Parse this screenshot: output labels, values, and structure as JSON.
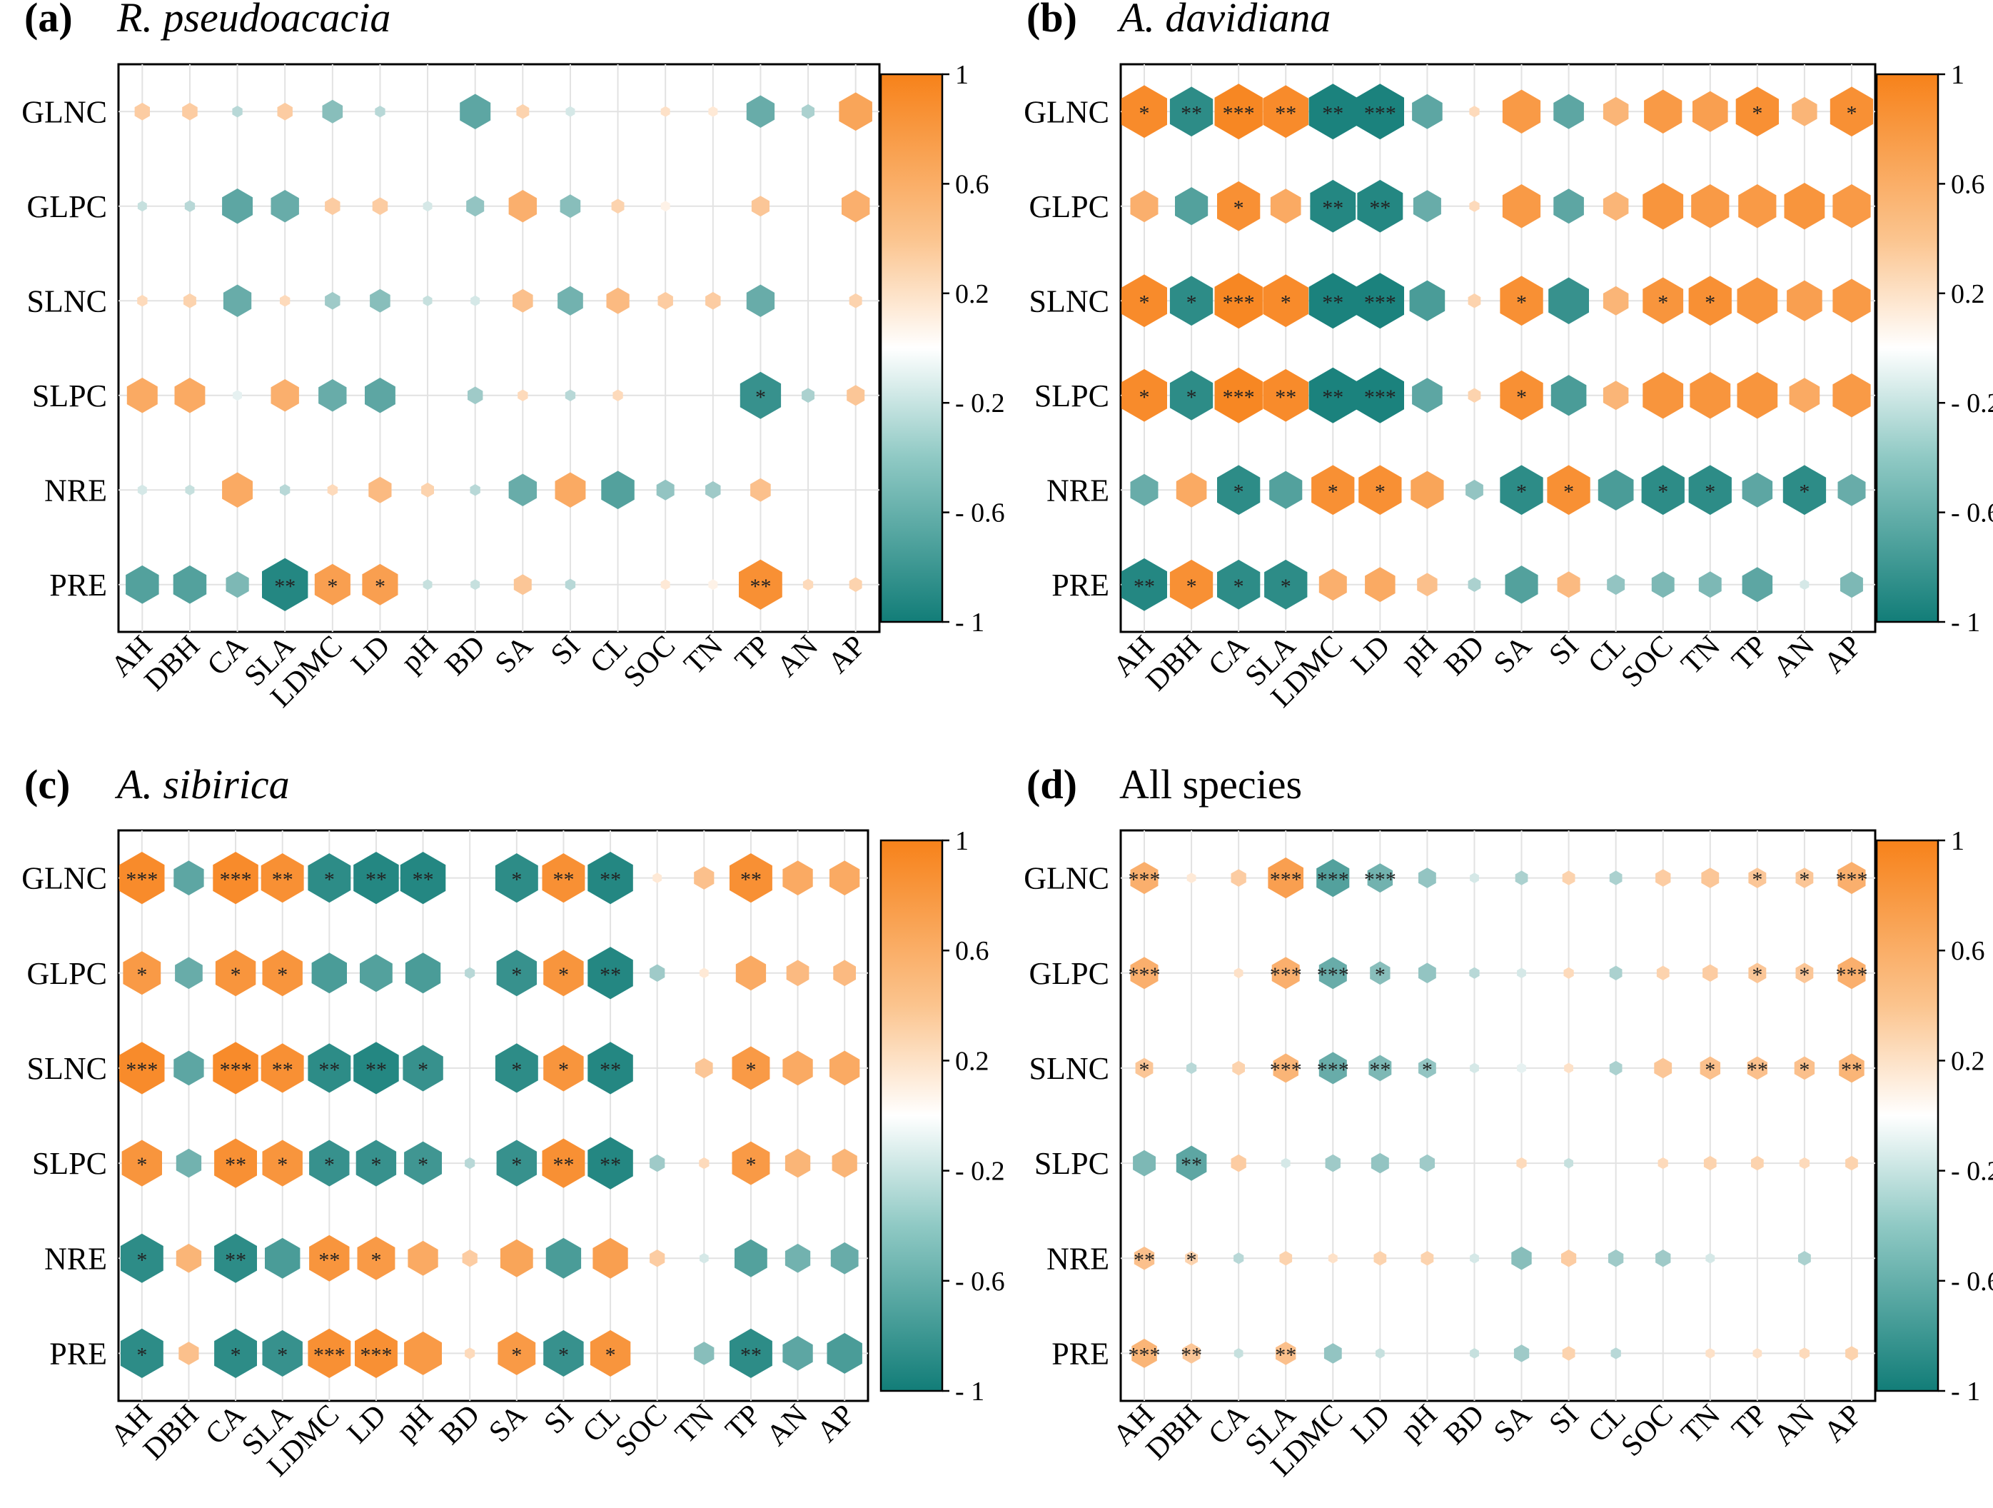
{
  "figure": {
    "row_labels": [
      "GLNC",
      "GLPC",
      "SLNC",
      "SLPC",
      "NRE",
      "PRE"
    ],
    "col_labels": [
      "AH",
      "DBH",
      "CA",
      "SLA",
      "LDMC",
      "LD",
      "pH",
      "BD",
      "SA",
      "SI",
      "CL",
      "SOC",
      "TN",
      "TP",
      "AN",
      "AP"
    ],
    "colorbar": {
      "ticks": [
        1,
        0.6,
        0.2,
        -0.2,
        -0.6,
        -1
      ],
      "tick_labels": [
        "1",
        "0.6",
        "0.2",
        "- 0.2",
        "- 0.6",
        "- 1"
      ],
      "colors": {
        "pos": "#f7821a",
        "neg": "#127d78",
        "mid": "#ffffff"
      }
    }
  },
  "chart_data": [
    {
      "type": "heatmap",
      "panel_label": "(a)",
      "title": "R. pseudoacacia",
      "title_italic": true,
      "value_range": [
        -1,
        1
      ],
      "values": [
        [
          0.3,
          0.3,
          -0.2,
          0.3,
          -0.4,
          -0.2,
          0,
          -0.6,
          0.25,
          -0.1,
          0,
          0.15,
          0.1,
          -0.55,
          -0.25,
          0.65
        ],
        [
          -0.15,
          -0.2,
          -0.6,
          -0.55,
          0.3,
          0.3,
          -0.1,
          -0.35,
          0.55,
          -0.4,
          0.25,
          0.05,
          0,
          0.35,
          0,
          0.55
        ],
        [
          0.2,
          0.25,
          -0.55,
          0.2,
          -0.3,
          -0.4,
          -0.15,
          -0.1,
          0.4,
          -0.5,
          0.45,
          0.3,
          0.3,
          -0.55,
          0,
          0.25
        ],
        [
          0.6,
          0.6,
          -0.05,
          0.55,
          -0.55,
          -0.6,
          0,
          -0.3,
          0.2,
          -0.2,
          0.2,
          0,
          0,
          -0.8,
          -0.25,
          0.35
        ],
        [
          -0.1,
          -0.15,
          0.6,
          -0.2,
          0.2,
          0.45,
          0.25,
          -0.2,
          -0.55,
          0.6,
          -0.65,
          -0.35,
          -0.3,
          0.4,
          0,
          0
        ],
        [
          -0.65,
          -0.65,
          -0.45,
          -0.9,
          0.7,
          0.7,
          -0.15,
          -0.15,
          0.35,
          -0.2,
          0,
          0.1,
          0.05,
          0.85,
          0.2,
          0.25
        ]
      ],
      "significance": [
        [
          "",
          "",
          "",
          "",
          "",
          "",
          "",
          "",
          "",
          "",
          "",
          "",
          "",
          "",
          "",
          ""
        ],
        [
          "",
          "",
          "",
          "",
          "",
          "",
          "",
          "",
          "",
          "",
          "",
          "",
          "",
          "",
          "",
          ""
        ],
        [
          "",
          "",
          "",
          "",
          "",
          "",
          "",
          "",
          "",
          "",
          "",
          "",
          "",
          "",
          "",
          ""
        ],
        [
          "",
          "",
          "",
          "",
          "",
          "",
          "",
          "",
          "",
          "",
          "",
          "",
          "",
          "*",
          "",
          ""
        ],
        [
          "",
          "",
          "",
          "",
          "",
          "",
          "",
          "",
          "",
          "",
          "",
          "",
          "",
          "",
          "",
          ""
        ],
        [
          "",
          "",
          "",
          "**",
          "*",
          "*",
          "",
          "",
          "",
          "",
          "",
          "",
          "",
          "**",
          "",
          ""
        ]
      ]
    },
    {
      "type": "heatmap",
      "panel_label": "(b)",
      "title": "A. davidiana",
      "title_italic": true,
      "value_range": [
        -1,
        1
      ],
      "values": [
        [
          0.9,
          -0.85,
          0.95,
          0.9,
          -0.95,
          -0.95,
          -0.6,
          0.2,
          0.75,
          -0.6,
          0.5,
          0.75,
          0.7,
          0.85,
          0.5,
          0.85
        ],
        [
          0.55,
          -0.65,
          0.85,
          0.6,
          -0.9,
          -0.9,
          -0.55,
          0.2,
          0.75,
          -0.6,
          0.5,
          0.8,
          0.75,
          0.75,
          0.8,
          0.75
        ],
        [
          0.9,
          -0.85,
          0.95,
          0.9,
          -0.95,
          -0.95,
          -0.7,
          0.25,
          0.85,
          -0.8,
          0.5,
          0.8,
          0.85,
          0.8,
          0.7,
          0.75
        ],
        [
          0.9,
          -0.85,
          0.95,
          0.9,
          -0.95,
          -0.95,
          -0.6,
          0.25,
          0.85,
          -0.7,
          0.5,
          0.8,
          0.8,
          0.8,
          0.6,
          0.75
        ],
        [
          -0.55,
          0.6,
          -0.85,
          -0.65,
          0.85,
          0.85,
          0.65,
          -0.35,
          -0.85,
          0.85,
          -0.7,
          -0.85,
          -0.85,
          -0.6,
          -0.85,
          -0.55
        ],
        [
          -0.9,
          0.85,
          -0.85,
          -0.85,
          0.55,
          0.6,
          0.4,
          -0.25,
          -0.65,
          0.45,
          -0.35,
          -0.45,
          -0.45,
          -0.6,
          -0.1,
          -0.45
        ]
      ],
      "significance": [
        [
          "*",
          "**",
          "***",
          "**",
          "**",
          "***",
          "",
          "",
          "",
          "",
          "",
          "",
          "",
          "*",
          "",
          "*"
        ],
        [
          "",
          "",
          "*",
          "",
          "**",
          "**",
          "",
          "",
          "",
          "",
          "",
          "",
          "",
          "",
          "",
          ""
        ],
        [
          "*",
          "*",
          "***",
          "*",
          "**",
          "***",
          "",
          "",
          "*",
          "",
          "",
          "*",
          "*",
          "",
          "",
          ""
        ],
        [
          "*",
          "*",
          "***",
          "**",
          "**",
          "***",
          "",
          "",
          "*",
          "",
          "",
          "",
          "",
          "",
          "",
          ""
        ],
        [
          "",
          "",
          "*",
          "",
          "*",
          "*",
          "",
          "",
          "*",
          "*",
          "",
          "*",
          "*",
          "",
          "*",
          ""
        ],
        [
          "**",
          "*",
          "*",
          "*",
          "",
          "",
          "",
          "",
          "",
          "",
          "",
          "",
          "",
          "",
          "",
          ""
        ]
      ]
    },
    {
      "type": "heatmap",
      "panel_label": "(c)",
      "title": "A. sibirica",
      "title_italic": true,
      "value_range": [
        -1,
        1
      ],
      "values": [
        [
          0.9,
          -0.6,
          0.9,
          0.85,
          -0.85,
          -0.9,
          -0.9,
          0,
          -0.85,
          0.85,
          -0.9,
          0.1,
          0.4,
          0.85,
          0.6,
          0.6
        ],
        [
          0.75,
          -0.55,
          0.8,
          0.8,
          -0.7,
          -0.65,
          -0.7,
          -0.2,
          -0.8,
          0.8,
          -0.9,
          -0.3,
          0.1,
          0.6,
          0.45,
          0.45
        ],
        [
          0.9,
          -0.6,
          0.9,
          0.85,
          -0.85,
          -0.9,
          -0.8,
          0,
          -0.85,
          0.8,
          -0.9,
          0,
          0.35,
          0.75,
          0.6,
          0.6
        ],
        [
          0.8,
          -0.5,
          0.85,
          0.8,
          -0.8,
          -0.8,
          -0.75,
          -0.2,
          -0.8,
          0.85,
          -0.9,
          -0.3,
          0.2,
          0.75,
          0.5,
          0.5
        ],
        [
          -0.85,
          0.5,
          -0.85,
          -0.7,
          0.8,
          0.75,
          0.6,
          0.3,
          0.65,
          -0.7,
          0.7,
          0.3,
          -0.1,
          -0.65,
          -0.5,
          -0.55
        ],
        [
          -0.85,
          0.4,
          -0.85,
          -0.8,
          0.85,
          0.85,
          0.75,
          0.2,
          0.75,
          -0.8,
          0.8,
          0,
          -0.4,
          -0.85,
          -0.6,
          -0.7
        ]
      ],
      "significance": [
        [
          "***",
          "",
          "***",
          "**",
          "*",
          "**",
          "**",
          "",
          "*",
          "**",
          "**",
          "",
          "",
          "**",
          "",
          ""
        ],
        [
          "*",
          "",
          "*",
          "*",
          "",
          "",
          "",
          "",
          "*",
          "*",
          "**",
          "",
          "",
          "",
          "",
          ""
        ],
        [
          "***",
          "",
          "***",
          "**",
          "**",
          "**",
          "*",
          "",
          "*",
          "*",
          "**",
          "",
          "",
          "*",
          "",
          ""
        ],
        [
          "*",
          "",
          "**",
          "*",
          "*",
          "*",
          "*",
          "",
          "*",
          "**",
          "**",
          "",
          "",
          "*",
          "",
          ""
        ],
        [
          "*",
          "",
          "**",
          "",
          "**",
          "*",
          "",
          "",
          "",
          "",
          "",
          "",
          "",
          "",
          "",
          ""
        ],
        [
          "*",
          "",
          "*",
          "*",
          "***",
          "***",
          "",
          "",
          "*",
          "*",
          "*",
          "",
          "",
          "**",
          "",
          ""
        ]
      ]
    },
    {
      "type": "heatmap",
      "panel_label": "(d)",
      "title": "All species",
      "title_italic": false,
      "value_range": [
        -1,
        1
      ],
      "values": [
        [
          0.55,
          0.1,
          0.3,
          0.7,
          -0.65,
          -0.5,
          -0.35,
          -0.1,
          -0.25,
          0.25,
          -0.25,
          0.3,
          0.35,
          0.35,
          0.35,
          0.55
        ],
        [
          0.55,
          0,
          0.15,
          0.55,
          -0.55,
          -0.4,
          -0.35,
          -0.2,
          -0.1,
          0.2,
          -0.25,
          0.25,
          0.3,
          0.35,
          0.35,
          0.55
        ],
        [
          0.35,
          -0.2,
          0.25,
          0.5,
          -0.55,
          -0.45,
          -0.35,
          -0.1,
          -0.05,
          0.15,
          -0.25,
          0.35,
          0.4,
          0.4,
          0.4,
          0.5
        ],
        [
          -0.45,
          -0.6,
          0.3,
          -0.1,
          -0.3,
          -0.35,
          -0.3,
          0,
          0.2,
          -0.15,
          0,
          0.2,
          0.25,
          0.25,
          0.2,
          0.25
        ],
        [
          0.4,
          0.25,
          -0.2,
          0.25,
          0.15,
          0.25,
          0.25,
          -0.1,
          -0.4,
          0.3,
          -0.3,
          -0.3,
          -0.1,
          0,
          -0.25,
          0
        ],
        [
          0.5,
          0.35,
          -0.15,
          0.4,
          -0.35,
          -0.15,
          0,
          -0.15,
          -0.3,
          0.25,
          -0.2,
          0,
          0.15,
          0.15,
          0.2,
          0.25
        ]
      ],
      "significance": [
        [
          "***",
          "",
          "",
          "***",
          "***",
          "***",
          "",
          "",
          "",
          "",
          "",
          "",
          "",
          "*",
          "*",
          "***"
        ],
        [
          "***",
          "",
          "",
          "***",
          "***",
          "*",
          "",
          "",
          "",
          "",
          "",
          "",
          "",
          "*",
          "*",
          "***"
        ],
        [
          "*",
          "",
          "",
          "***",
          "***",
          "**",
          "*",
          "",
          "",
          "",
          "",
          "",
          "*",
          "**",
          "*",
          "**"
        ],
        [
          "",
          "**",
          "",
          "",
          "",
          "",
          "",
          "",
          "",
          "",
          "",
          "",
          "",
          "",
          "",
          ""
        ],
        [
          "**",
          "*",
          "",
          "",
          "",
          "",
          "",
          "",
          "",
          "",
          "",
          "",
          "",
          "",
          "",
          ""
        ],
        [
          "***",
          "**",
          "",
          "**",
          "",
          "",
          "",
          "",
          "",
          "",
          "",
          "",
          "",
          "",
          "",
          ""
        ]
      ]
    }
  ]
}
